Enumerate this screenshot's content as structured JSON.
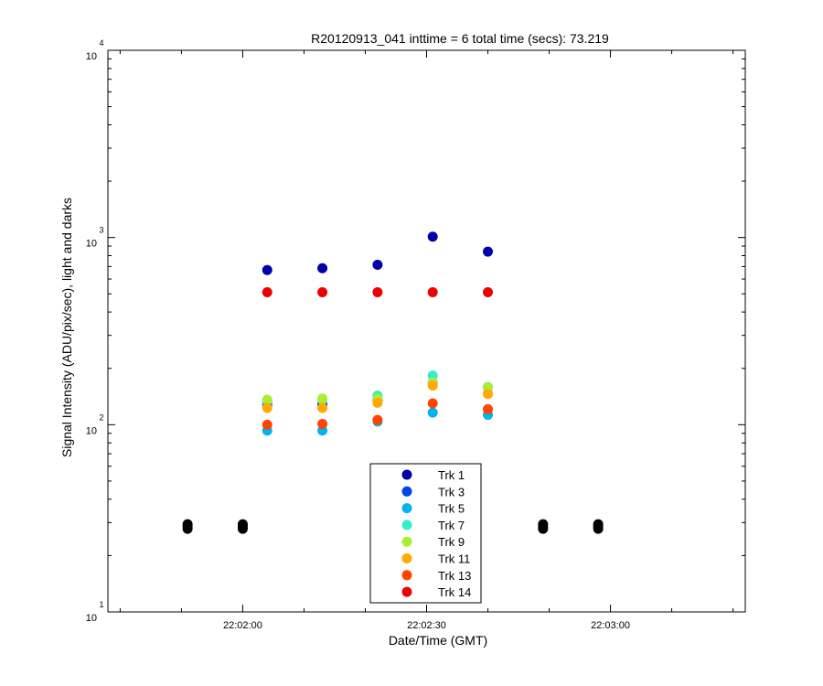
{
  "chart_data": {
    "type": "scatter",
    "title": "R20120913_041 inttime = 6 total time (secs): 73.219",
    "xlabel": "Date/Time (GMT)",
    "ylabel": "Signal Intensity (ADU/pix/sec), light and darks",
    "y_scale": "log",
    "ylim": [
      10,
      10000
    ],
    "xlim": [
      "22:01:38",
      "22:03:22"
    ],
    "x_ticks": [
      "22:02:00",
      "22:02:30",
      "22:03:00"
    ],
    "y_tick_labels": [
      {
        "base": "10",
        "exp": "1"
      },
      {
        "base": "10",
        "exp": "2"
      },
      {
        "base": "10",
        "exp": "3"
      },
      {
        "base": "10",
        "exp": "4"
      }
    ],
    "grid": false,
    "legend_position": "bottom-center",
    "x": [
      "22:02:04",
      "22:02:13",
      "22:02:22",
      "22:02:31",
      "22:02:40"
    ],
    "series": [
      {
        "name": "Trk 1",
        "color": "#0000aa",
        "values": [
          670,
          685,
          715,
          1010,
          840
        ]
      },
      {
        "name": "Trk 3",
        "color": "#0044ee",
        "values": [
          128,
          128,
          135,
          168,
          158
        ]
      },
      {
        "name": "Trk 5",
        "color": "#00b4ee",
        "values": [
          93,
          93,
          104,
          116,
          113
        ]
      },
      {
        "name": "Trk 7",
        "color": "#33eecc",
        "values": [
          134,
          136,
          143,
          183,
          159
        ]
      },
      {
        "name": "Trk 9",
        "color": "#aaee33",
        "values": [
          136,
          138,
          138,
          168,
          158
        ]
      },
      {
        "name": "Trk 11",
        "color": "#ffaa00",
        "values": [
          123,
          123,
          131,
          162,
          146
        ]
      },
      {
        "name": "Trk 13",
        "color": "#ff4400",
        "values": [
          100,
          101,
          106,
          130,
          121
        ]
      },
      {
        "name": "Trk 14",
        "color": "#ee0000",
        "values": [
          510,
          510,
          510,
          510,
          510
        ]
      }
    ],
    "darks": {
      "color": "#000000",
      "x": [
        "22:01:51",
        "22:01:51",
        "22:01:51",
        "22:02:00",
        "22:02:00",
        "22:02:00",
        "22:02:49",
        "22:02:49",
        "22:02:49",
        "22:02:58",
        "22:02:58",
        "22:02:58"
      ],
      "values": [
        27.8,
        28.6,
        29.4,
        27.8,
        28.6,
        29.4,
        27.8,
        28.6,
        29.4,
        27.8,
        28.6,
        29.4
      ]
    }
  }
}
